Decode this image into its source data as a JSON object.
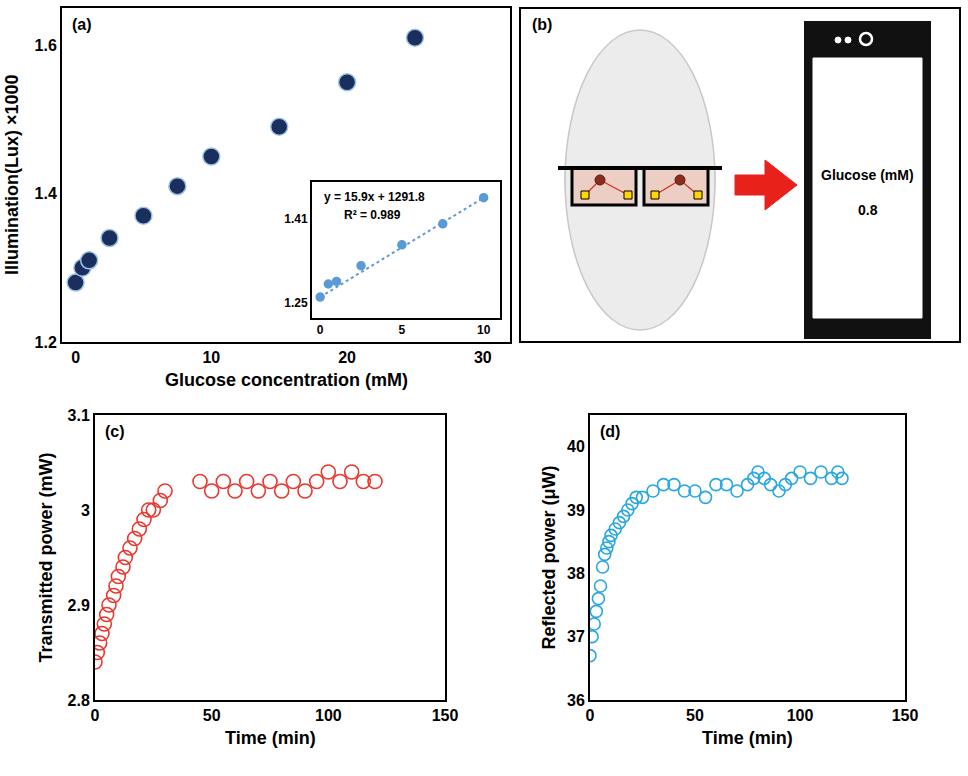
{
  "chart_data": [
    {
      "type": "scatter",
      "title": "(a)",
      "x_label": "Glucose concentration (mM)",
      "y_label": "Illumination(Lux) ×1000",
      "x": [
        0,
        0.5,
        1,
        2.5,
        5,
        7.5,
        10,
        15,
        20,
        25
      ],
      "values": [
        1.28,
        1.3,
        1.31,
        1.34,
        1.37,
        1.41,
        1.45,
        1.49,
        1.55,
        1.61
      ],
      "color": "#1b2f5e",
      "marker": "circle",
      "grid": false,
      "xlim": [
        -1,
        32
      ],
      "xticks": [
        0,
        10,
        20,
        30
      ],
      "ylim": [
        1.2,
        1.65
      ],
      "yticks": [
        1.2,
        1.4,
        1.6
      ],
      "inset": {
        "type": "scatter",
        "x": [
          0,
          0.5,
          1,
          2.5,
          5,
          7.5,
          10
        ],
        "values": [
          1.26,
          1.285,
          1.29,
          1.32,
          1.36,
          1.4,
          1.45
        ],
        "color": "#5b9bd5",
        "marker": "circle",
        "grid": false,
        "xlim": [
          -0.5,
          11
        ],
        "xticks": [
          0,
          5,
          10
        ],
        "ylim": [
          1.22,
          1.48
        ],
        "yticks": [
          1.25,
          1.41
        ],
        "trendline": {
          "type": "line",
          "x": [
            0,
            10
          ],
          "values": [
            1.26,
            1.45
          ],
          "color": "#5b9bd5",
          "line_style": "dotted"
        },
        "annotations": [
          "y = 15.9x + 1291.8",
          "R² = 0.989"
        ]
      }
    },
    {
      "type": "scatter",
      "title": "(c)",
      "x_label": "Time (min)",
      "y_label": "Transmitted power (mW)",
      "x": [
        0,
        1,
        2,
        3,
        4,
        5,
        6,
        8,
        9,
        10,
        12,
        13,
        15,
        17,
        19,
        21,
        23,
        25,
        28,
        30,
        45,
        50,
        55,
        60,
        65,
        70,
        75,
        80,
        85,
        90,
        95,
        100,
        105,
        110,
        115,
        120
      ],
      "values": [
        2.84,
        2.85,
        2.86,
        2.87,
        2.88,
        2.89,
        2.9,
        2.91,
        2.92,
        2.93,
        2.94,
        2.95,
        2.96,
        2.97,
        2.98,
        2.99,
        3.0,
        3.0,
        3.01,
        3.02,
        3.03,
        3.02,
        3.03,
        3.02,
        3.03,
        3.02,
        3.03,
        3.02,
        3.03,
        3.02,
        3.03,
        3.04,
        3.03,
        3.04,
        3.03,
        3.03
      ],
      "color": "#e8382f",
      "marker": "circle-open",
      "grid": false,
      "xlim": [
        0,
        150
      ],
      "xticks": [
        0,
        50,
        100,
        150
      ],
      "ylim": [
        2.8,
        3.1
      ],
      "yticks": [
        2.8,
        2.9,
        3,
        3.1
      ]
    },
    {
      "type": "scatter",
      "title": "(d)",
      "x_label": "Time (min)",
      "y_label": "Reflected power (μW)",
      "x": [
        0,
        1,
        2,
        3,
        4,
        5,
        6,
        7,
        8,
        9,
        10,
        12,
        14,
        16,
        18,
        20,
        22,
        25,
        30,
        35,
        40,
        45,
        50,
        55,
        60,
        65,
        70,
        75,
        78,
        80,
        83,
        86,
        90,
        93,
        96,
        100,
        105,
        110,
        115,
        118,
        120
      ],
      "values": [
        36.7,
        37.0,
        37.2,
        37.4,
        37.6,
        37.8,
        38.1,
        38.3,
        38.4,
        38.5,
        38.6,
        38.7,
        38.8,
        38.9,
        39.0,
        39.1,
        39.2,
        39.2,
        39.3,
        39.4,
        39.4,
        39.3,
        39.3,
        39.2,
        39.4,
        39.4,
        39.3,
        39.4,
        39.5,
        39.6,
        39.5,
        39.4,
        39.3,
        39.4,
        39.5,
        39.6,
        39.5,
        39.6,
        39.5,
        39.6,
        39.5
      ],
      "color": "#29a8e0",
      "marker": "circle-open",
      "grid": false,
      "xlim": [
        0,
        150
      ],
      "xticks": [
        0,
        50,
        100,
        150
      ],
      "ylim": [
        36,
        40.5
      ],
      "yticks": [
        36,
        37,
        38,
        39,
        40
      ]
    }
  ],
  "diagram": {
    "label": "(b)",
    "phone": {
      "title": "Glucose (mM)",
      "value": 0.8
    }
  }
}
